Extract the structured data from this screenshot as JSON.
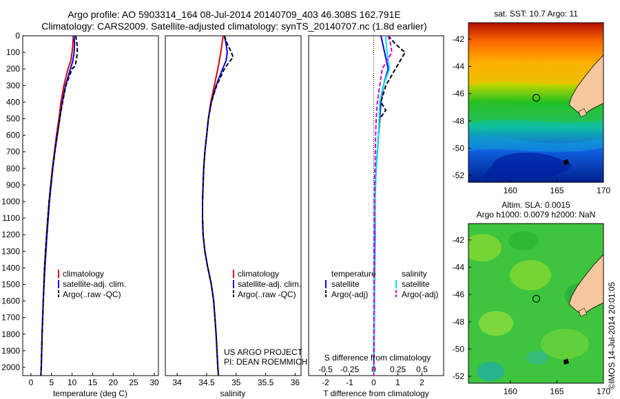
{
  "header": {
    "line1": "Argo profile: AO 5903314_164 08-Jul-2014 20140709_403 46.308S 162.791E",
    "line2": "Climatology: CARS2009. Satellite-adjusted climatology: synTS_20140707.nc (1.8d earlier)"
  },
  "credits": {
    "project": "US ARGO PROJECT",
    "pi": "PI: DEAN ROEMMICH",
    "stamp": "©IMOS 14-Jul-2014 20:01:05"
  },
  "colors": {
    "clim": "#e00000",
    "sat": "#0000ff",
    "argo": "#000000",
    "sat_s": "#00e5ee",
    "argo_s": "#d000d0"
  },
  "chart_data": [
    {
      "type": "line",
      "xlabel": "temperature (deg C)",
      "ylim": [
        2050,
        0
      ],
      "xlim": [
        -2,
        31
      ],
      "xticks": [
        0,
        5,
        10,
        15,
        20,
        25,
        30
      ],
      "yticks": [
        0,
        100,
        200,
        300,
        400,
        500,
        600,
        700,
        800,
        900,
        1000,
        1100,
        1200,
        1300,
        1400,
        1500,
        1600,
        1700,
        1800,
        1900,
        2000
      ],
      "legend": [
        "climatology",
        "satellite-adj. clim.",
        "Argo(..raw -QC)"
      ],
      "legend_placement": "lower-right",
      "series": [
        {
          "key": "clim",
          "style": "solid",
          "depth": [
            0,
            50,
            100,
            150,
            200,
            300,
            400,
            500,
            600,
            700,
            800,
            900,
            1000,
            1200,
            1400,
            1600,
            1800,
            2000,
            2050
          ],
          "values": [
            10.3,
            10.2,
            10.0,
            9.7,
            9.0,
            8.0,
            7.3,
            6.8,
            6.2,
            5.7,
            5.2,
            4.8,
            4.4,
            3.8,
            3.3,
            3.0,
            2.7,
            2.5,
            2.4
          ]
        },
        {
          "key": "sat",
          "style": "solid",
          "depth": [
            0,
            50,
            100,
            150,
            200,
            300,
            400,
            500,
            600,
            700,
            800,
            900,
            1000,
            1200,
            1400,
            1600,
            1800,
            2000,
            2050
          ],
          "values": [
            10.5,
            10.6,
            10.5,
            10.2,
            9.6,
            8.4,
            7.6,
            7.0,
            6.4,
            5.8,
            5.3,
            4.9,
            4.5,
            3.9,
            3.4,
            3.0,
            2.7,
            2.5,
            2.4
          ]
        },
        {
          "key": "argo",
          "style": "dashed",
          "depth": [
            0,
            50,
            100,
            150,
            180,
            200,
            300,
            400,
            500,
            600,
            700,
            800,
            900,
            1000,
            1200,
            1400,
            1600,
            1800,
            2000,
            2050
          ],
          "values": [
            10.9,
            11.2,
            11.3,
            11.0,
            10.8,
            10.0,
            8.5,
            7.7,
            7.0,
            6.4,
            5.8,
            5.3,
            4.8,
            4.4,
            3.8,
            3.3,
            3.0,
            2.7,
            2.5,
            2.4
          ]
        }
      ]
    },
    {
      "type": "line",
      "xlabel": "salinity",
      "ylim": [
        2050,
        0
      ],
      "xlim": [
        33.8,
        36.1
      ],
      "xticks": [
        34,
        34.5,
        35,
        35.5,
        36
      ],
      "xticklabels": [
        "34",
        "34.5",
        "35",
        "35.5",
        "36"
      ],
      "legend": [
        "climatology",
        "satellite-adj. clim.",
        "Argo(..raw -QC)"
      ],
      "legend_placement": "lower-right",
      "series": [
        {
          "key": "clim",
          "style": "solid",
          "depth": [
            0,
            50,
            100,
            200,
            300,
            400,
            500,
            600,
            700,
            800,
            900,
            1000,
            1100,
            1200,
            1300,
            1400,
            1500,
            1600,
            1800,
            2000,
            2050
          ],
          "values": [
            34.78,
            34.76,
            34.74,
            34.69,
            34.63,
            34.57,
            34.53,
            34.5,
            34.47,
            34.45,
            34.44,
            34.43,
            34.43,
            34.44,
            34.47,
            34.52,
            34.58,
            34.62,
            34.66,
            34.69,
            34.7
          ]
        },
        {
          "key": "sat",
          "style": "solid",
          "depth": [
            0,
            50,
            100,
            150,
            200,
            300,
            400,
            500,
            600,
            700,
            800,
            900,
            1000,
            1100,
            1200,
            1300,
            1400,
            1500,
            1600,
            1800,
            2000,
            2050
          ],
          "values": [
            34.8,
            34.83,
            34.85,
            34.83,
            34.77,
            34.66,
            34.58,
            34.53,
            34.5,
            34.47,
            34.45,
            34.44,
            34.43,
            34.43,
            34.44,
            34.47,
            34.52,
            34.58,
            34.62,
            34.66,
            34.69,
            34.7
          ]
        },
        {
          "key": "argo",
          "style": "dashed",
          "depth": [
            0,
            50,
            100,
            130,
            150,
            200,
            300,
            400,
            500,
            600,
            700,
            800,
            900,
            1000,
            1100,
            1200,
            1300,
            1400,
            1500,
            1600,
            1800,
            2000,
            2050
          ],
          "values": [
            34.8,
            34.85,
            34.92,
            34.95,
            34.9,
            34.8,
            34.67,
            34.58,
            34.53,
            34.5,
            34.47,
            34.45,
            34.44,
            34.43,
            34.43,
            34.44,
            34.47,
            34.52,
            34.58,
            34.62,
            34.66,
            34.69,
            34.7
          ]
        }
      ]
    },
    {
      "type": "line",
      "xlabel": "T difference from climatology",
      "xlabel_top": "S difference from climatology",
      "ylim": [
        2050,
        0
      ],
      "xlim": [
        -2.7,
        2.9
      ],
      "xticks": [
        -2,
        -1,
        0,
        1,
        2
      ],
      "xticks_top": [
        -0.5,
        -0.25,
        0,
        0.25,
        0.5
      ],
      "xticklabels_top": [
        "-0.5",
        "-0.25",
        "0",
        "0.25",
        "0.5"
      ],
      "legend_titles": [
        "temperature",
        "salinity"
      ],
      "legend": [
        "satellite",
        "Argo(-adj)",
        "satellite",
        "Argo(-adj)"
      ],
      "series": [
        {
          "name": "satellite",
          "key": "sat",
          "style": "solid",
          "depth": [
            0,
            100,
            200,
            300,
            400,
            600,
            800,
            1000,
            1200,
            1500,
            1800,
            2050
          ],
          "values": [
            0.3,
            0.45,
            0.6,
            0.4,
            0.3,
            0.2,
            0.1,
            0.05,
            0.05,
            0.03,
            0.02,
            0.0
          ]
        },
        {
          "name": "Argo(-adj)",
          "key": "argo",
          "style": "dashed",
          "depth": [
            0,
            50,
            100,
            150,
            200,
            300,
            400,
            450,
            500,
            600,
            700,
            800,
            900,
            1000,
            1200,
            1500,
            1800,
            2050
          ],
          "values": [
            0.6,
            0.9,
            1.3,
            1.1,
            0.9,
            0.5,
            0.3,
            0.5,
            0.25,
            0.2,
            0.15,
            0.1,
            0.05,
            0.05,
            0.03,
            0.02,
            0.01,
            0.0
          ]
        },
        {
          "name": "satellite",
          "key": "sat_s",
          "style": "solid",
          "depth": [
            0,
            100,
            200,
            300,
            400,
            600,
            800,
            1000,
            1200,
            1500,
            1800,
            2050
          ],
          "values": [
            0.5,
            0.55,
            0.65,
            0.4,
            0.25,
            0.2,
            0.1,
            0.05,
            0.03,
            0.02,
            0.01,
            0.0
          ]
        },
        {
          "name": "Argo(-adj)",
          "key": "argo_s",
          "style": "dashed",
          "depth": [
            0,
            50,
            100,
            150,
            200,
            300,
            400,
            500,
            600,
            800,
            1000,
            1200,
            1500,
            2050
          ],
          "values": [
            0.6,
            0.7,
            0.75,
            0.55,
            0.35,
            0.25,
            0.15,
            0.1,
            0.08,
            0.05,
            0.03,
            0.02,
            0.01,
            0.0
          ]
        }
      ]
    },
    {
      "type": "heatmap",
      "title": "sat. SST: 10.7  Argo: 11",
      "xlim": [
        155.5,
        170
      ],
      "ylim": [
        -52.5,
        -40.8
      ],
      "xticks": [
        160,
        165,
        170
      ],
      "yticks": [
        -42,
        -44,
        -46,
        -48,
        -50,
        -52
      ],
      "marker": {
        "lon": 162.79,
        "lat": -46.31
      }
    },
    {
      "type": "heatmap",
      "title": "Altim. SLA: 0.0015",
      "subtitle": "Argo h1000: 0.0079 h2000: NaN",
      "xlim": [
        155.5,
        170
      ],
      "ylim": [
        -52.5,
        -40.8
      ],
      "xticks": [
        160,
        165,
        170
      ],
      "yticks": [
        -42,
        -44,
        -46,
        -48,
        -50,
        -52
      ],
      "marker": {
        "lon": 162.79,
        "lat": -46.31
      }
    }
  ]
}
